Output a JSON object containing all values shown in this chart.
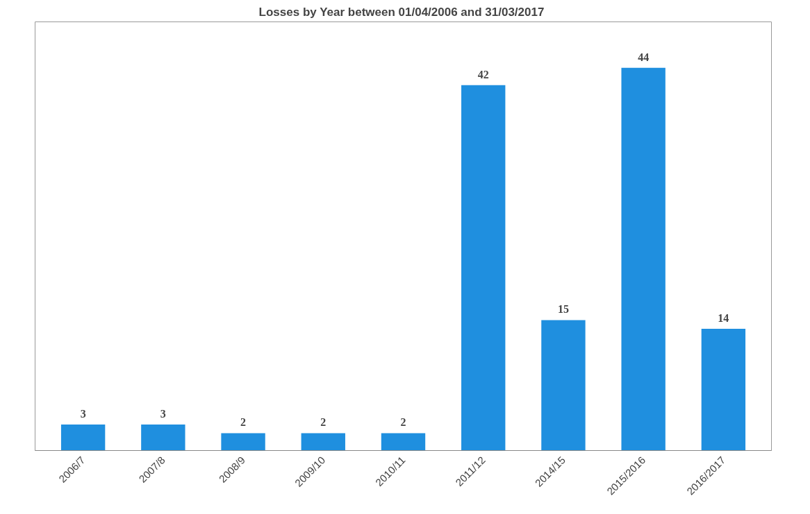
{
  "chart_data": {
    "type": "bar",
    "title": "Losses by Year between 01/04/2006  and 31/03/2017",
    "categories": [
      "2006/7",
      "2007/8",
      "2008/9",
      "2009/10",
      "2010/11",
      "2011/12",
      "2014/15",
      "2015/2016",
      "2016/2017"
    ],
    "values": [
      3,
      3,
      2,
      2,
      2,
      42,
      15,
      44,
      14
    ],
    "color": "#1f8fdf",
    "data_labels": true
  }
}
